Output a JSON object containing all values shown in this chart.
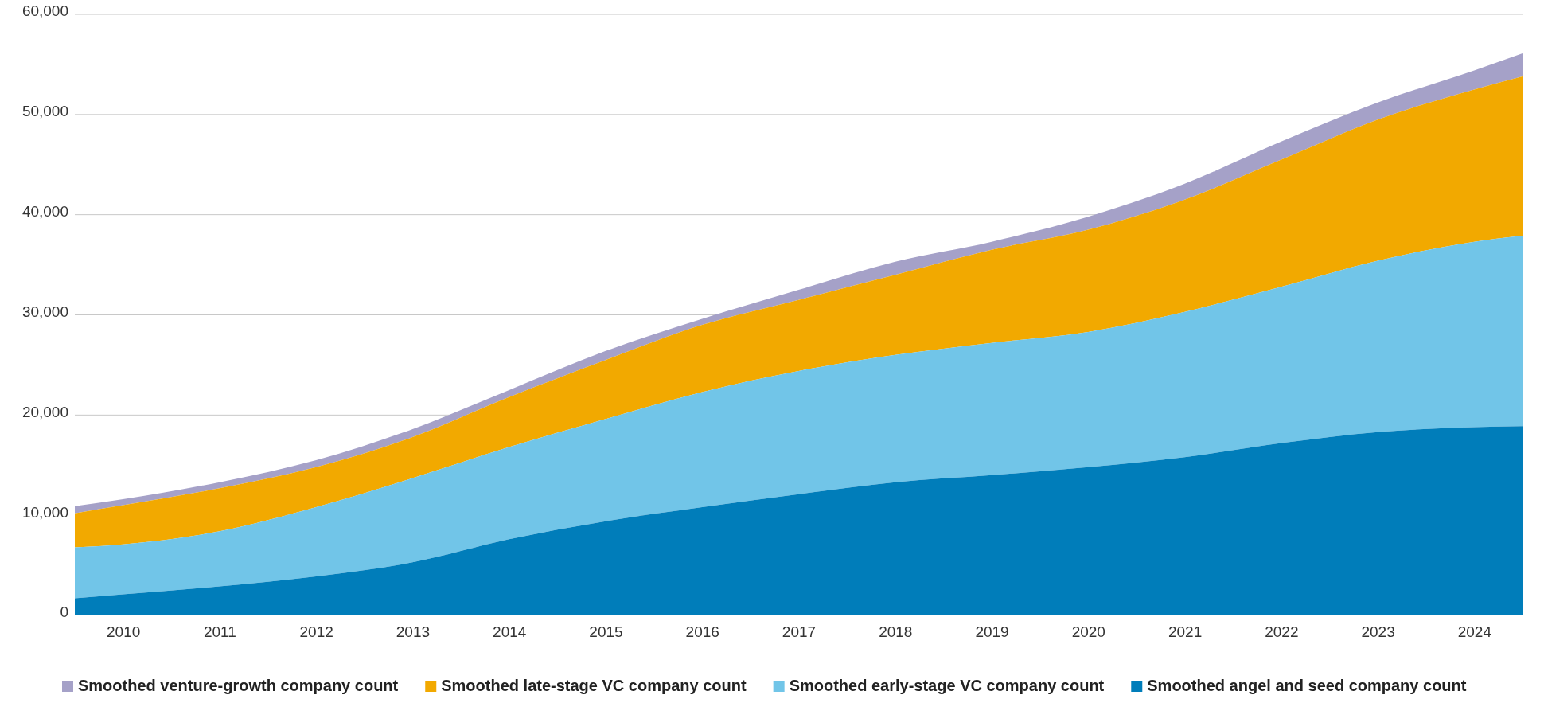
{
  "chart_data": {
    "type": "area",
    "stacked": true,
    "x": [
      2009.5,
      2010,
      2011,
      2012,
      2013,
      2014,
      2015,
      2016,
      2017,
      2018,
      2019,
      2020,
      2021,
      2022,
      2023,
      2024,
      2024.5
    ],
    "xlim": [
      2009.5,
      2024.5
    ],
    "xticks": [
      2010,
      2011,
      2012,
      2013,
      2014,
      2015,
      2016,
      2017,
      2018,
      2019,
      2020,
      2021,
      2022,
      2023,
      2024
    ],
    "ylim": [
      0,
      60000
    ],
    "yticks": [
      {
        "value": 0,
        "label": "0"
      },
      {
        "value": 10000,
        "label": "10,000"
      },
      {
        "value": 20000,
        "label": "20,000"
      },
      {
        "value": 30000,
        "label": "30,000"
      },
      {
        "value": 40000,
        "label": "40,000"
      },
      {
        "value": 50000,
        "label": "50,000"
      },
      {
        "value": 60000,
        "label": "60,000"
      }
    ],
    "grid": "y",
    "legend": "bottom",
    "series": [
      {
        "name": "Smoothed angel and seed company count",
        "color": "#007dba",
        "values": [
          1700,
          2100,
          2900,
          3900,
          5300,
          7600,
          9400,
          10800,
          12100,
          13300,
          14000,
          14800,
          15800,
          17200,
          18300,
          18800,
          18900
        ]
      },
      {
        "name": "Smoothed early-stage VC company count",
        "color": "#71c5e8",
        "values": [
          5100,
          5000,
          5500,
          6900,
          8400,
          9200,
          10200,
          11500,
          12300,
          12700,
          13200,
          13500,
          14500,
          15600,
          17100,
          18500,
          19000
        ]
      },
      {
        "name": "Smoothed late-stage VC company count",
        "color": "#f2a900",
        "values": [
          3400,
          3900,
          4300,
          4000,
          4100,
          5000,
          5900,
          6700,
          7100,
          8000,
          9300,
          10200,
          11200,
          12700,
          14100,
          15200,
          15900
        ]
      },
      {
        "name": "Smoothed venture-growth company count",
        "color": "#a5a1c8",
        "values": [
          700,
          600,
          600,
          700,
          800,
          700,
          900,
          600,
          1000,
          1300,
          800,
          1300,
          1600,
          1800,
          1700,
          1900,
          2300
        ]
      }
    ]
  }
}
